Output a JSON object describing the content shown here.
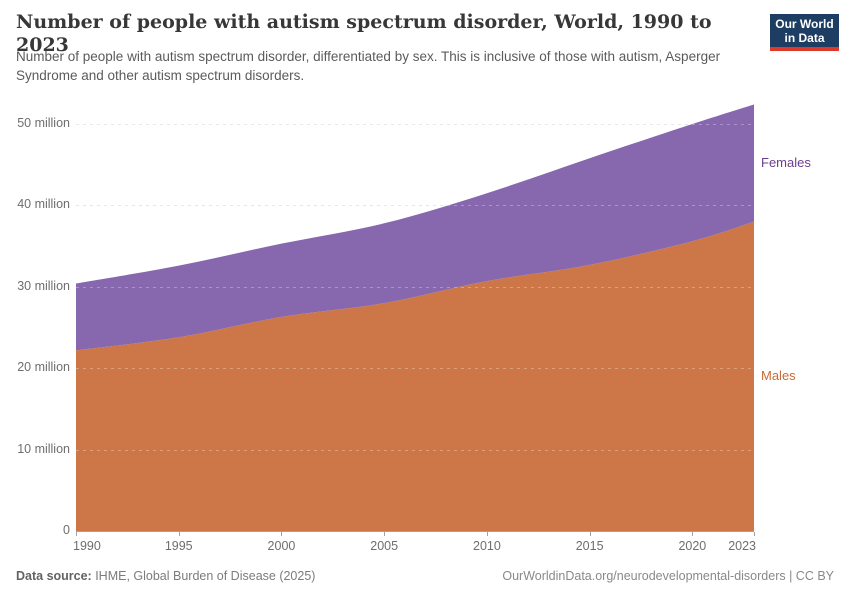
{
  "header": {
    "title": "Number of people with autism spectrum disorder, World, 1990 to 2023",
    "subtitle": "Number of people with autism spectrum disorder, differentiated by sex. This is inclusive of those with autism, Asperger Syndrome and other autism spectrum disorders.",
    "logo": {
      "line1": "Our World",
      "line2": "in Data",
      "bg_color": "#1d3d63",
      "bar_color": "#dc3a2c"
    }
  },
  "chart_data": {
    "type": "area",
    "stacked": true,
    "title": "Number of people with autism spectrum disorder, World, 1990 to 2023",
    "x": [
      1990,
      1995,
      2000,
      2005,
      2010,
      2015,
      2020,
      2023
    ],
    "series": [
      {
        "name": "Males",
        "fill_color": "#cd7748",
        "label_color": "#c96b31",
        "values_millions": [
          22.2,
          23.8,
          26.3,
          28.0,
          30.7,
          32.7,
          35.6,
          38.0
        ]
      },
      {
        "name": "Females",
        "fill_color": "#8767ad",
        "label_color": "#6d3e91",
        "values_millions": [
          8.2,
          8.8,
          9.0,
          9.8,
          10.8,
          13.1,
          14.4,
          14.4
        ]
      }
    ],
    "totals_millions": [
      30.4,
      32.6,
      35.3,
      37.8,
      41.5,
      45.8,
      50.0,
      52.4
    ],
    "xlabel": "",
    "ylabel": "",
    "xlim": [
      1990,
      2023
    ],
    "ylim": [
      0,
      50
    ],
    "xtick_labels": [
      "1990",
      "1995",
      "2000",
      "2005",
      "2010",
      "2015",
      "2020",
      "2023"
    ],
    "ytick_values": [
      0,
      10,
      20,
      30,
      40,
      50
    ],
    "ytick_labels": [
      "0",
      "10 million",
      "20 million",
      "30 million",
      "40 million",
      "50 million"
    ],
    "grid": "horizontal dashed",
    "legend_position": "right edge labels",
    "grid_color": "#dddddd",
    "axis_color": "#a3a3a3",
    "tick_text_color": "#6e6e6e"
  },
  "footer": {
    "source_label": "Data source:",
    "source_value": " IHME, Global Burden of Disease (2025)",
    "right_text": "OurWorldinData.org/neurodevelopmental-disorders | CC BY"
  }
}
